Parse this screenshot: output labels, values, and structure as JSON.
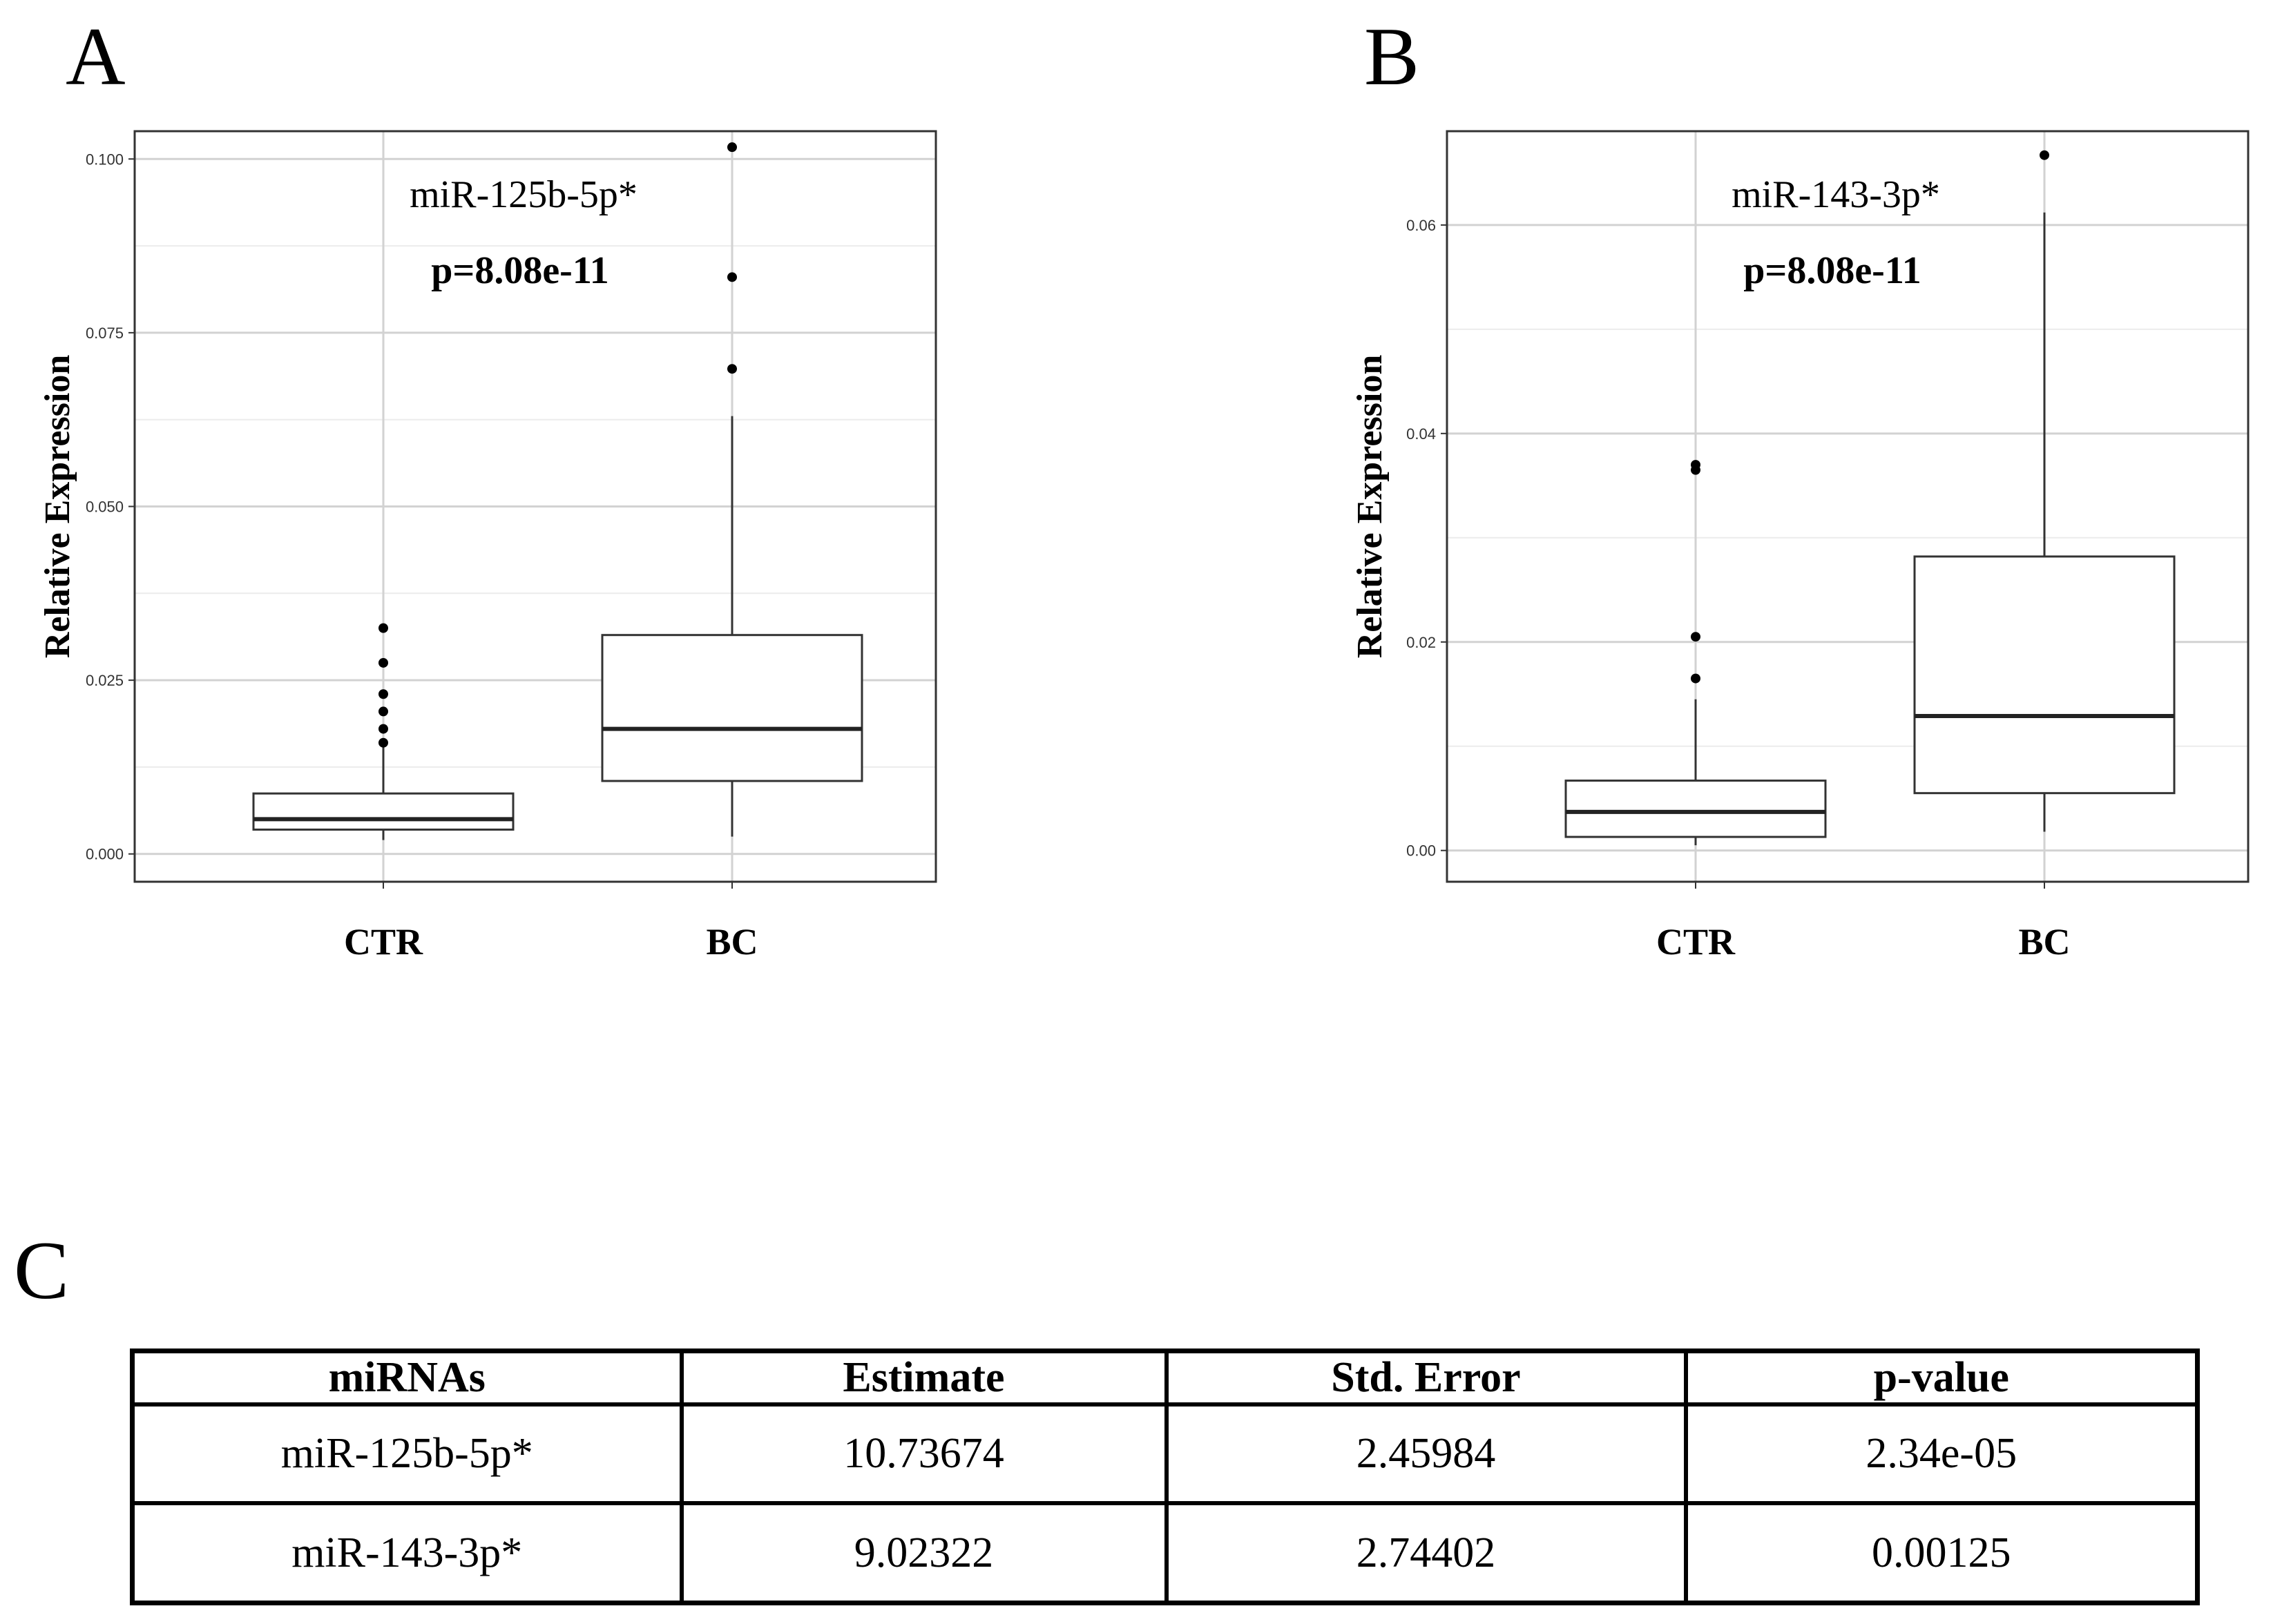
{
  "panels": {
    "a": "A",
    "b": "B",
    "c": "C"
  },
  "chart_data": [
    {
      "type": "box",
      "panel": "A",
      "ylabel": "Relative Expression",
      "ylim": [
        -0.004,
        0.104
      ],
      "yticks": [
        0.0,
        0.025,
        0.05,
        0.075,
        0.1
      ],
      "ytick_labels": [
        "0.000",
        "0.025",
        "0.050",
        "0.075",
        "0.100"
      ],
      "categories": [
        "CTR",
        "BC"
      ],
      "annotation": "miR-125b-5p*",
      "pvalue_text": "p=8.08e-11",
      "boxes": [
        {
          "name": "CTR",
          "whisker_low": 0.002,
          "q1": 0.0035,
          "median": 0.005,
          "q3": 0.0087,
          "whisker_high": 0.0155,
          "outliers": [
            0.016,
            0.018,
            0.0205,
            0.023,
            0.0275,
            0.0325
          ]
        },
        {
          "name": "BC",
          "whisker_low": 0.0025,
          "q1": 0.0105,
          "median": 0.018,
          "q3": 0.0315,
          "whisker_high": 0.063,
          "outliers": [
            0.0698,
            0.083,
            0.1017
          ]
        }
      ]
    },
    {
      "type": "box",
      "panel": "B",
      "ylabel": "Relative Expression",
      "ylim": [
        -0.003,
        0.069
      ],
      "yticks": [
        0.0,
        0.02,
        0.04,
        0.06
      ],
      "ytick_labels": [
        "0.00",
        "0.02",
        "0.04",
        "0.06"
      ],
      "categories": [
        "CTR",
        "BC"
      ],
      "annotation": "miR-143-3p*",
      "pvalue_text": "p=8.08e-11",
      "boxes": [
        {
          "name": "CTR",
          "whisker_low": 0.0005,
          "q1": 0.0013,
          "median": 0.0037,
          "q3": 0.0067,
          "whisker_high": 0.0145,
          "outliers": [
            0.0165,
            0.0205,
            0.0365,
            0.037
          ]
        },
        {
          "name": "BC",
          "whisker_low": 0.0018,
          "q1": 0.0055,
          "median": 0.0129,
          "q3": 0.0282,
          "whisker_high": 0.0612,
          "outliers": [
            0.0667
          ]
        }
      ]
    }
  ],
  "table": {
    "headers": [
      "miRNAs",
      "Estimate",
      "Std. Error",
      "p-value"
    ],
    "rows": [
      [
        "miR-125b-5p*",
        "10.73674",
        "2.45984",
        "2.34e-05"
      ],
      [
        "miR-143-3p*",
        "9.02322",
        "2.74402",
        "0.00125"
      ]
    ]
  }
}
